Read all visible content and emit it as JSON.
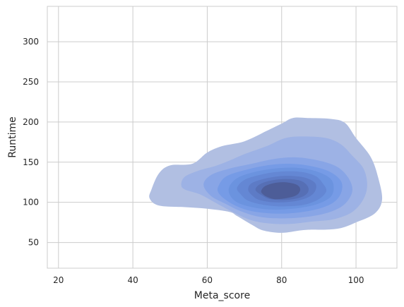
{
  "chart_data": {
    "type": "kde-contour",
    "title": "",
    "xlabel": "Meta_score",
    "ylabel": "Runtime",
    "xlim": [
      17,
      111
    ],
    "ylim": [
      18,
      344
    ],
    "x_ticks": [
      20,
      40,
      60,
      80,
      100
    ],
    "y_ticks": [
      50,
      100,
      150,
      200,
      250,
      300
    ],
    "grid": true,
    "density_peak": {
      "x": 78,
      "y": 112
    },
    "colors": {
      "background": "#ffffff",
      "grid": "#cccccc",
      "frame": "#cccccc",
      "levels": [
        "#b1bfe2",
        "#9db2e5",
        "#88a5e6",
        "#769be6",
        "#6b93df",
        "#6487d4",
        "#5d7bc6",
        "#566fb5",
        "#4d5d98"
      ]
    },
    "contour_levels": [
      {
        "level": 1,
        "points": [
          [
            44.5,
            105
          ],
          [
            45,
            116
          ],
          [
            47,
            136
          ],
          [
            50,
            146
          ],
          [
            56,
            148
          ],
          [
            60,
            162
          ],
          [
            64,
            170
          ],
          [
            70,
            176
          ],
          [
            76,
            189
          ],
          [
            80,
            198
          ],
          [
            83,
            205
          ],
          [
            87,
            205
          ],
          [
            93,
            204
          ],
          [
            97,
            199
          ],
          [
            100,
            180
          ],
          [
            104,
            156
          ],
          [
            106,
            130
          ],
          [
            107,
            103
          ],
          [
            105,
            86
          ],
          [
            100,
            75
          ],
          [
            96,
            68
          ],
          [
            92,
            66
          ],
          [
            88,
            66
          ],
          [
            85,
            65
          ],
          [
            80,
            62
          ],
          [
            75,
            65
          ],
          [
            72,
            72
          ],
          [
            68,
            83
          ],
          [
            66,
            88
          ],
          [
            60,
            92
          ],
          [
            54,
            94
          ],
          [
            47,
            96
          ]
        ]
      },
      {
        "level": 2,
        "points": [
          [
            53,
            122
          ],
          [
            54,
            132
          ],
          [
            58,
            140
          ],
          [
            62,
            145
          ],
          [
            66,
            152
          ],
          [
            70,
            160
          ],
          [
            76,
            170
          ],
          [
            81,
            180
          ],
          [
            86,
            182
          ],
          [
            92,
            180
          ],
          [
            96,
            172
          ],
          [
            99,
            158
          ],
          [
            102,
            142
          ],
          [
            103,
            122
          ],
          [
            102,
            104
          ],
          [
            99,
            88
          ],
          [
            94,
            79
          ],
          [
            88,
            76
          ],
          [
            82,
            73
          ],
          [
            76,
            74
          ],
          [
            71,
            79
          ],
          [
            66,
            90
          ],
          [
            62,
            100
          ],
          [
            58,
            110
          ],
          [
            54,
            116
          ]
        ]
      },
      {
        "level": 3,
        "points": [
          [
            59,
            122
          ],
          [
            61,
            134
          ],
          [
            66,
            142
          ],
          [
            72,
            148
          ],
          [
            78,
            154
          ],
          [
            84,
            156
          ],
          [
            90,
            152
          ],
          [
            95,
            144
          ],
          [
            98,
            130
          ],
          [
            99,
            114
          ],
          [
            97,
            98
          ],
          [
            93,
            88
          ],
          [
            87,
            82
          ],
          [
            80,
            80
          ],
          [
            74,
            82
          ],
          [
            69,
            89
          ],
          [
            65,
            98
          ],
          [
            61,
            108
          ]
        ]
      },
      {
        "level": 4,
        "points": [
          [
            63,
            120
          ],
          [
            65,
            132
          ],
          [
            70,
            140
          ],
          [
            76,
            146
          ],
          [
            82,
            148
          ],
          [
            88,
            145
          ],
          [
            93,
            138
          ],
          [
            96,
            126
          ],
          [
            96,
            112
          ],
          [
            94,
            100
          ],
          [
            90,
            92
          ],
          [
            84,
            87
          ],
          [
            78,
            86
          ],
          [
            72,
            89
          ],
          [
            68,
            95
          ],
          [
            65,
            103
          ],
          [
            63,
            112
          ]
        ]
      },
      {
        "level": 5,
        "points": [
          [
            66,
            120
          ],
          [
            68,
            130
          ],
          [
            72,
            137
          ],
          [
            78,
            142
          ],
          [
            84,
            143
          ],
          [
            89,
            139
          ],
          [
            93,
            130
          ],
          [
            94,
            118
          ],
          [
            93,
            106
          ],
          [
            89,
            97
          ],
          [
            83,
            92
          ],
          [
            77,
            91
          ],
          [
            72,
            94
          ],
          [
            68,
            100
          ],
          [
            66,
            110
          ]
        ]
      },
      {
        "level": 6,
        "points": [
          [
            68,
            118
          ],
          [
            70,
            128
          ],
          [
            74,
            134
          ],
          [
            79,
            138
          ],
          [
            85,
            138
          ],
          [
            89,
            133
          ],
          [
            91,
            124
          ],
          [
            92,
            114
          ],
          [
            90,
            104
          ],
          [
            86,
            97
          ],
          [
            80,
            95
          ],
          [
            75,
            97
          ],
          [
            71,
            102
          ],
          [
            69,
            110
          ]
        ]
      },
      {
        "level": 7,
        "points": [
          [
            71,
            116
          ],
          [
            72,
            124
          ],
          [
            76,
            130
          ],
          [
            81,
            133
          ],
          [
            86,
            131
          ],
          [
            89,
            124
          ],
          [
            89,
            114
          ],
          [
            87,
            106
          ],
          [
            83,
            101
          ],
          [
            78,
            100
          ],
          [
            74,
            103
          ],
          [
            72,
            109
          ]
        ]
      },
      {
        "level": 8,
        "points": [
          [
            73,
            115
          ],
          [
            74,
            122
          ],
          [
            77,
            127
          ],
          [
            81,
            129
          ],
          [
            85,
            127
          ],
          [
            87,
            120
          ],
          [
            87,
            112
          ],
          [
            85,
            106
          ],
          [
            81,
            103
          ],
          [
            77,
            104
          ],
          [
            75,
            108
          ]
        ]
      },
      {
        "level": 9,
        "points": [
          [
            74.5,
            114
          ],
          [
            75.5,
            120
          ],
          [
            78,
            124
          ],
          [
            81,
            125
          ],
          [
            84,
            122
          ],
          [
            85,
            116
          ],
          [
            84,
            109
          ],
          [
            81,
            105
          ],
          [
            78,
            104
          ],
          [
            76,
            107
          ],
          [
            75,
            110
          ]
        ]
      }
    ]
  }
}
